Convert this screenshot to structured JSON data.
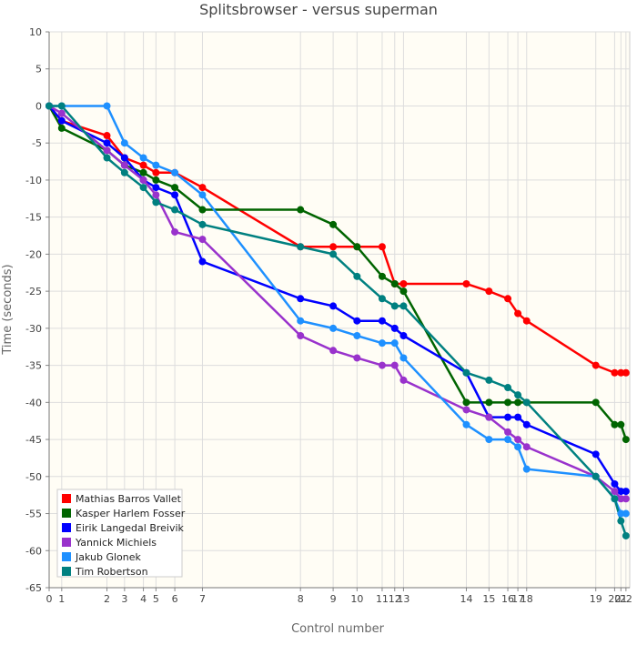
{
  "chart_data": {
    "type": "line",
    "title": "Splitsbrowser - versus superman",
    "xlabel": "Control number",
    "ylabel": "Time (seconds)",
    "ylim": [
      -65,
      10
    ],
    "yticks": [
      10,
      5,
      0,
      -5,
      -10,
      -15,
      -20,
      -25,
      -30,
      -35,
      -40,
      -45,
      -50,
      -55,
      -60,
      -65
    ],
    "grid": true,
    "legend_position": "bottom-left",
    "xticks": [
      {
        "label": "0",
        "x": 0
      },
      {
        "label": "1",
        "x": 1
      },
      {
        "label": "2",
        "x": 4.6
      },
      {
        "label": "3",
        "x": 6
      },
      {
        "label": "4",
        "x": 7.5
      },
      {
        "label": "5",
        "x": 8.5
      },
      {
        "label": "6",
        "x": 10
      },
      {
        "label": "7",
        "x": 12.2
      },
      {
        "label": "8",
        "x": 20
      },
      {
        "label": "9",
        "x": 22.6
      },
      {
        "label": "10",
        "x": 24.5
      },
      {
        "label": "11",
        "x": 26.5
      },
      {
        "label": "12",
        "x": 27.5
      },
      {
        "label": "13",
        "x": 28.2
      },
      {
        "label": "14",
        "x": 33.2
      },
      {
        "label": "15",
        "x": 35
      },
      {
        "label": "16",
        "x": 36.5
      },
      {
        "label": "17",
        "x": 37.3
      },
      {
        "label": "18",
        "x": 38
      },
      {
        "label": "19",
        "x": 43.5
      },
      {
        "label": "20",
        "x": 45
      },
      {
        "label": "21",
        "x": 45.5
      },
      {
        "label": "22",
        "x": 45.9
      }
    ],
    "series": [
      {
        "name": "Mathias Barros Vallet",
        "color": "#ff0000",
        "x": [
          0,
          1,
          4.6,
          6,
          7.5,
          8.5,
          10,
          12.2,
          20,
          22.6,
          24.5,
          26.5,
          27.5,
          28.2,
          33.2,
          35,
          36.5,
          37.3,
          38,
          43.5,
          45,
          45.5,
          45.9
        ],
        "y": [
          0,
          -2,
          -4,
          -7,
          -8,
          -9,
          -9,
          -11,
          -19,
          -19,
          -19,
          -19,
          -24,
          -24,
          -24,
          -25,
          -26,
          -28,
          -29,
          -35,
          -36,
          -36,
          -36
        ]
      },
      {
        "name": "Kasper Harlem Fosser",
        "color": "#006400",
        "x": [
          0,
          1,
          4.6,
          6,
          7.5,
          8.5,
          10,
          12.2,
          20,
          22.6,
          24.5,
          26.5,
          27.5,
          28.2,
          33.2,
          35,
          36.5,
          37.3,
          38,
          43.5,
          45,
          45.5,
          45.9
        ],
        "y": [
          0,
          -3,
          -6,
          -8,
          -9,
          -10,
          -11,
          -14,
          -14,
          -16,
          -19,
          -23,
          -24,
          -25,
          -40,
          -40,
          -40,
          -40,
          -40,
          -40,
          -43,
          -43,
          -45
        ]
      },
      {
        "name": "Eirik Langedal Breivik",
        "color": "#0000ff",
        "x": [
          0,
          1,
          4.6,
          6,
          7.5,
          8.5,
          10,
          12.2,
          20,
          22.6,
          24.5,
          26.5,
          27.5,
          28.2,
          33.2,
          35,
          36.5,
          37.3,
          38,
          43.5,
          45,
          45.5,
          45.9
        ],
        "y": [
          0,
          -2,
          -5,
          -7,
          -10,
          -11,
          -12,
          -21,
          -26,
          -27,
          -29,
          -29,
          -30,
          -31,
          -36,
          -42,
          -42,
          -42,
          -43,
          -47,
          -51,
          -52,
          -52
        ]
      },
      {
        "name": "Yannick Michiels",
        "color": "#9932cc",
        "x": [
          0,
          1,
          4.6,
          6,
          7.5,
          8.5,
          10,
          12.2,
          20,
          22.6,
          24.5,
          26.5,
          27.5,
          28.2,
          33.2,
          35,
          36.5,
          37.3,
          38,
          43.5,
          45,
          45.5,
          45.9
        ],
        "y": [
          0,
          -1,
          -6,
          -8,
          -10,
          -12,
          -17,
          -18,
          -31,
          -33,
          -34,
          -35,
          -35,
          -37,
          -41,
          -42,
          -44,
          -45,
          -46,
          -50,
          -52,
          -53,
          -53
        ]
      },
      {
        "name": "Jakub Glonek",
        "color": "#1e90ff",
        "x": [
          0,
          1,
          4.6,
          6,
          7.5,
          8.5,
          10,
          12.2,
          20,
          22.6,
          24.5,
          26.5,
          27.5,
          28.2,
          33.2,
          35,
          36.5,
          37.3,
          38,
          43.5,
          45,
          45.5,
          45.9
        ],
        "y": [
          0,
          0,
          0,
          -5,
          -7,
          -8,
          -9,
          -12,
          -29,
          -30,
          -31,
          -32,
          -32,
          -34,
          -43,
          -45,
          -45,
          -46,
          -49,
          -50,
          -53,
          -55,
          -55
        ]
      },
      {
        "name": "Tim Robertson",
        "color": "#008080",
        "x": [
          0,
          1,
          4.6,
          6,
          7.5,
          8.5,
          10,
          12.2,
          20,
          22.6,
          24.5,
          26.5,
          27.5,
          28.2,
          33.2,
          35,
          36.5,
          37.3,
          38,
          43.5,
          45,
          45.5,
          45.9
        ],
        "y": [
          0,
          0,
          -7,
          -9,
          -11,
          -13,
          -14,
          -16,
          -19,
          -20,
          -23,
          -26,
          -27,
          -27,
          -36,
          -37,
          -38,
          -39,
          -40,
          -50,
          -53,
          -56,
          -58
        ]
      }
    ]
  }
}
